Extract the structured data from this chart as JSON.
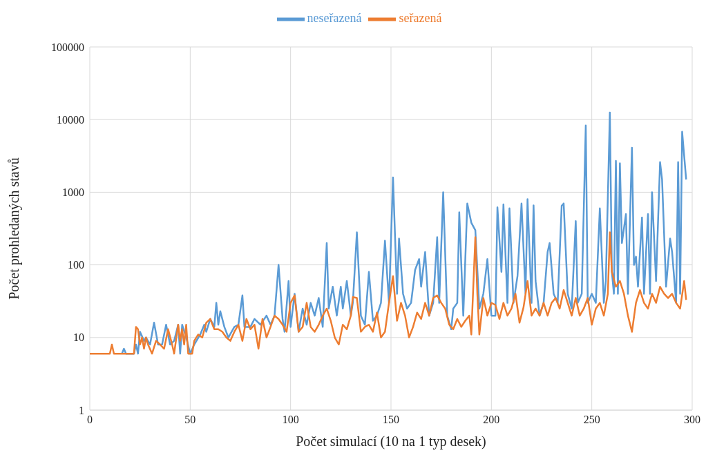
{
  "chart_data": {
    "type": "line",
    "xlabel": "Počet simulací (10 na 1 typ desek)",
    "ylabel": "Počet prohledaných stavů",
    "log": "y",
    "xlim": [
      0,
      300
    ],
    "xticks": [
      0,
      50,
      100,
      150,
      200,
      250,
      300
    ],
    "ylim": [
      1,
      100000
    ],
    "yticks": [
      1,
      10,
      100,
      1000,
      10000,
      100000
    ],
    "grid": true,
    "legend": "top",
    "marker": "none",
    "line_style": "solid",
    "series": [
      {
        "name": "neseřazená",
        "color": "#5b9bd5",
        "x": [
          16,
          17,
          18,
          22,
          23,
          24,
          25,
          27,
          28,
          30,
          32,
          34,
          36,
          38,
          40,
          42,
          44,
          45,
          46,
          48,
          50,
          52,
          55,
          57,
          58,
          60,
          62,
          63,
          64,
          65,
          67,
          69,
          72,
          74,
          76,
          77,
          80,
          82,
          85,
          88,
          90,
          92,
          94,
          96,
          97,
          99,
          100,
          102,
          104,
          106,
          108,
          110,
          112,
          114,
          116,
          118,
          119,
          121,
          123,
          125,
          126,
          128,
          130,
          131,
          133,
          135,
          137,
          139,
          141,
          143,
          145,
          147,
          149,
          151,
          153,
          154,
          156,
          158,
          160,
          162,
          164,
          165,
          167,
          169,
          171,
          173,
          174,
          176,
          178,
          180,
          181,
          183,
          184,
          186,
          188,
          190,
          192,
          194,
          196,
          198,
          200,
          202,
          203,
          205,
          206,
          208,
          209,
          211,
          213,
          215,
          217,
          218,
          220,
          221,
          222,
          224,
          226,
          228,
          229,
          231,
          233,
          235,
          236,
          238,
          240,
          242,
          243,
          245,
          247,
          248,
          250,
          252,
          254,
          256,
          257,
          259,
          260,
          261,
          262,
          263,
          264,
          265,
          267,
          268,
          270,
          271,
          272,
          273,
          275,
          276,
          278,
          279,
          280,
          282,
          284,
          285,
          287,
          289,
          290,
          292,
          293,
          294,
          295,
          297
        ],
        "values": [
          6,
          7,
          6,
          6,
          8,
          6,
          12,
          9,
          10,
          8,
          16,
          8,
          8,
          15,
          8,
          9,
          15,
          6,
          15,
          10,
          6,
          8,
          11,
          15,
          12,
          18,
          14,
          30,
          15,
          23,
          14,
          10,
          14,
          15,
          38,
          14,
          14,
          18,
          15,
          20,
          15,
          20,
          100,
          18,
          12,
          60,
          14,
          40,
          12,
          25,
          15,
          30,
          20,
          35,
          14,
          200,
          25,
          50,
          20,
          50,
          25,
          60,
          20,
          30,
          280,
          20,
          15,
          80,
          17,
          20,
          30,
          215,
          30,
          1600,
          40,
          230,
          40,
          25,
          30,
          85,
          120,
          50,
          150,
          20,
          30,
          240,
          30,
          1000,
          20,
          13,
          25,
          30,
          530,
          20,
          700,
          380,
          300,
          25,
          40,
          120,
          20,
          20,
          620,
          80,
          680,
          30,
          600,
          30,
          70,
          700,
          40,
          800,
          30,
          660,
          60,
          20,
          30,
          150,
          200,
          40,
          30,
          650,
          700,
          40,
          25,
          400,
          30,
          40,
          8300,
          30,
          40,
          30,
          600,
          30,
          60,
          12500,
          80,
          40,
          2700,
          40,
          2500,
          200,
          500,
          40,
          4100,
          100,
          130,
          50,
          450,
          40,
          500,
          40,
          1000,
          60,
          2600,
          1500,
          50,
          230,
          150,
          30,
          2600,
          40,
          6800,
          1500
        ]
      },
      {
        "name": "seřazená",
        "color": "#ed7d31",
        "x": [
          0,
          10,
          11,
          12,
          22,
          23,
          24,
          25,
          26,
          27,
          28,
          29,
          31,
          33,
          35,
          37,
          39,
          41,
          42,
          44,
          45,
          46,
          47,
          48,
          49,
          51,
          52,
          54,
          56,
          58,
          60,
          62,
          64,
          66,
          68,
          70,
          72,
          74,
          76,
          78,
          80,
          82,
          84,
          86,
          88,
          90,
          92,
          94,
          96,
          98,
          100,
          102,
          104,
          106,
          108,
          110,
          112,
          114,
          116,
          118,
          120,
          122,
          124,
          126,
          128,
          130,
          131,
          133,
          135,
          137,
          139,
          141,
          143,
          145,
          147,
          149,
          151,
          153,
          155,
          157,
          159,
          161,
          163,
          165,
          167,
          169,
          171,
          173,
          175,
          177,
          179,
          181,
          183,
          185,
          187,
          189,
          190,
          192,
          193,
          194,
          196,
          198,
          200,
          202,
          204,
          206,
          208,
          210,
          212,
          214,
          216,
          218,
          220,
          222,
          224,
          226,
          228,
          230,
          232,
          234,
          236,
          238,
          240,
          242,
          244,
          246,
          248,
          250,
          252,
          254,
          256,
          258,
          259,
          260,
          262,
          264,
          266,
          268,
          270,
          272,
          274,
          276,
          278,
          280,
          282,
          284,
          286,
          288,
          290,
          292,
          294,
          296,
          297
        ],
        "values": [
          6,
          6,
          8,
          6,
          6,
          14,
          13,
          8,
          10,
          7,
          10,
          8,
          6,
          9,
          8,
          7,
          13,
          8,
          6,
          15,
          9,
          13,
          8,
          15,
          6,
          6,
          9,
          11,
          10,
          16,
          18,
          13,
          13,
          12,
          10,
          9,
          12,
          15,
          9,
          18,
          13,
          15,
          7,
          18,
          10,
          14,
          20,
          18,
          15,
          12,
          30,
          38,
          12,
          14,
          30,
          14,
          12,
          15,
          20,
          25,
          17,
          10,
          8,
          15,
          13,
          20,
          36,
          35,
          12,
          14,
          15,
          12,
          22,
          10,
          12,
          30,
          70,
          17,
          30,
          20,
          10,
          14,
          22,
          18,
          30,
          20,
          35,
          38,
          30,
          25,
          15,
          13,
          18,
          14,
          17,
          20,
          11,
          240,
          40,
          11,
          35,
          20,
          30,
          28,
          18,
          30,
          20,
          25,
          40,
          16,
          26,
          60,
          20,
          25,
          20,
          30,
          20,
          30,
          35,
          25,
          45,
          30,
          20,
          35,
          20,
          25,
          35,
          15,
          25,
          30,
          20,
          40,
          280,
          80,
          50,
          60,
          40,
          20,
          12,
          30,
          45,
          30,
          25,
          40,
          30,
          50,
          40,
          35,
          40,
          30,
          25,
          60,
          33
        ]
      }
    ]
  }
}
